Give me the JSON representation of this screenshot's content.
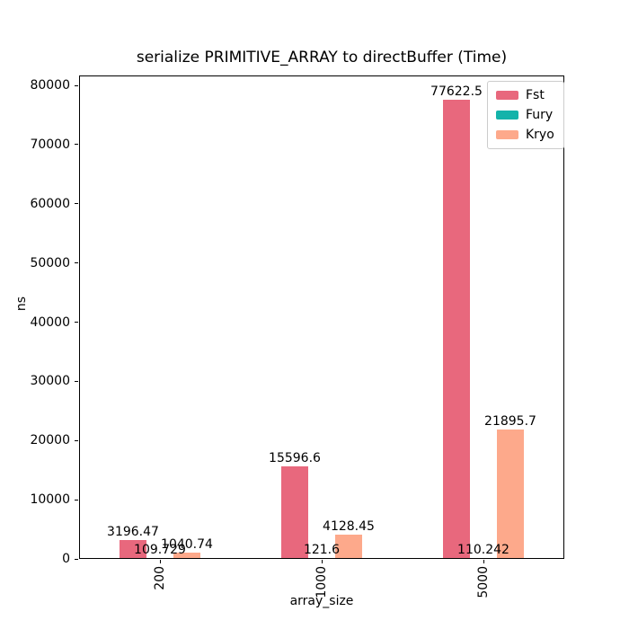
{
  "chart_data": {
    "type": "bar",
    "title": "serialize PRIMITIVE_ARRAY to directBuffer (Time)",
    "xlabel": "array_size",
    "ylabel": "ns",
    "categories": [
      "200",
      "1000",
      "5000"
    ],
    "series": [
      {
        "name": "Fst",
        "color": "#e8687d",
        "values": [
          3196.47,
          15596.6,
          77622.5
        ],
        "value_labels": [
          "3196.47",
          "15596.6",
          "77622.5"
        ]
      },
      {
        "name": "Fury",
        "color": "#14b3aa",
        "values": [
          109.729,
          121.6,
          110.242
        ],
        "value_labels": [
          "109.729",
          "121.6",
          "110.242"
        ]
      },
      {
        "name": "Kryo",
        "color": "#fda98b",
        "values": [
          1040.74,
          4128.45,
          21895.7
        ],
        "value_labels": [
          "1040.74",
          "4128.45",
          "21895.7"
        ]
      }
    ],
    "yticks": [
      0,
      10000,
      20000,
      30000,
      40000,
      50000,
      60000,
      70000,
      80000
    ],
    "ytick_labels": [
      "0",
      "10000",
      "20000",
      "30000",
      "40000",
      "50000",
      "60000",
      "70000",
      "80000"
    ],
    "ylim": [
      0,
      81670
    ],
    "xtick_rotation": 90,
    "grid": false,
    "legend_position": "upper right",
    "bar_value_labels": true
  }
}
